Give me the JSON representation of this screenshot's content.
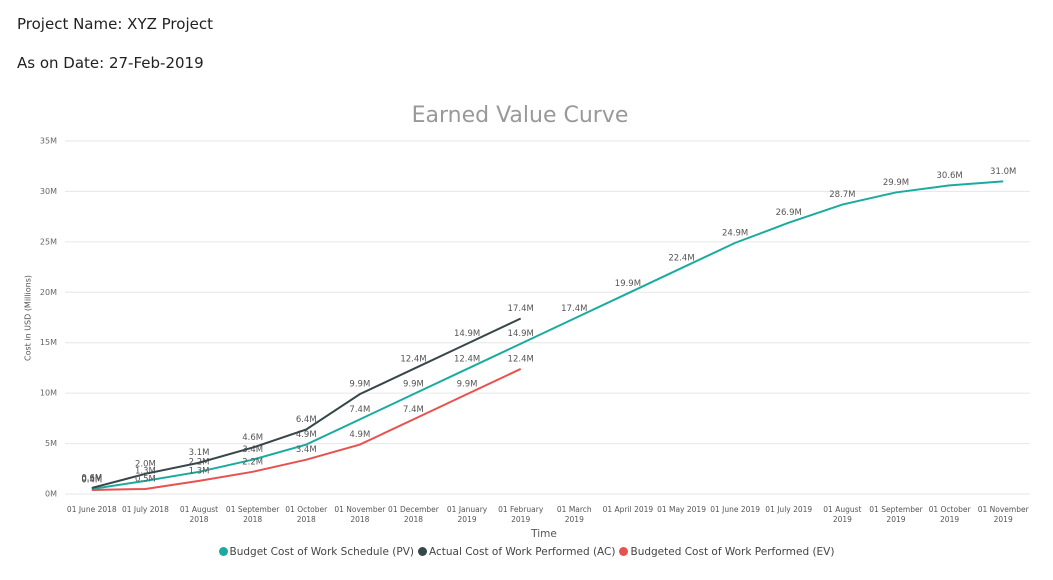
{
  "header": {
    "project": "Project Name: XYZ Project",
    "date": "As on Date: 27-Feb-2019"
  },
  "chart_data": {
    "type": "line",
    "title": "Earned Value Curve",
    "x_label": "Time",
    "y_label": "Cost in USD (Millions)",
    "categories": [
      "01 June 2018",
      "01 July 2018",
      "01 August 2018",
      "01 September 2018",
      "01 October 2018",
      "01 November 2018",
      "01 December 2018",
      "01 January 2019",
      "01 February 2019",
      "01 March 2019",
      "01 April 2019",
      "01 May 2019",
      "01 June 2019",
      "01 July 2019",
      "01 August 2019",
      "01 September 2019",
      "01 October 2019",
      "01 November 2019"
    ],
    "ylim": [
      0,
      35
    ],
    "yticks": [
      {
        "value": 0,
        "label": "0M"
      },
      {
        "value": 5,
        "label": "5M"
      },
      {
        "value": 10,
        "label": "10M"
      },
      {
        "value": 15,
        "label": "15M"
      },
      {
        "value": 20,
        "label": "20M"
      },
      {
        "value": 25,
        "label": "25M"
      },
      {
        "value": 30,
        "label": "30M"
      },
      {
        "value": 35,
        "label": "35M"
      }
    ],
    "grid": true,
    "series": [
      {
        "name": "Budget Cost of Work Schedule (PV)",
        "color": "#1aab9f",
        "values": [
          0.5,
          1.3,
          2.2,
          3.4,
          4.9,
          7.4,
          9.9,
          12.4,
          14.9,
          17.4,
          19.9,
          22.4,
          24.9,
          26.9,
          28.7,
          29.9,
          30.6,
          31.0
        ],
        "value_labels": [
          "0.5M",
          "1.3M",
          "2.2M",
          "3.4M",
          "4.9M",
          "7.4M",
          "9.9M",
          "12.4M",
          "14.9M",
          "17.4M",
          "19.9M",
          "22.4M",
          "24.9M",
          "26.9M",
          "28.7M",
          "29.9M",
          "30.6M",
          "31.0M"
        ]
      },
      {
        "name": "Actual Cost of Work Performed (AC)",
        "color": "#374649",
        "values": [
          0.6,
          2.0,
          3.1,
          4.6,
          6.4,
          9.9,
          12.4,
          14.9,
          17.4,
          null,
          null,
          null,
          null,
          null,
          null,
          null,
          null,
          null
        ],
        "value_labels": [
          "0.6M",
          "2.0M",
          "3.1M",
          "4.6M",
          "6.4M",
          "9.9M",
          "12.4M",
          "14.9M",
          "17.4M",
          null,
          null,
          null,
          null,
          null,
          null,
          null,
          null,
          null
        ]
      },
      {
        "name": "Budgeted Cost of Work Performed (EV)",
        "color": "#e9514f",
        "values": [
          0.4,
          0.5,
          1.3,
          2.2,
          3.4,
          4.9,
          7.4,
          9.9,
          12.4,
          null,
          null,
          null,
          null,
          null,
          null,
          null,
          null,
          null
        ],
        "value_labels": [
          "0.4M",
          "0.5M",
          "1.3M",
          "2.2M",
          "3.4M",
          "4.9M",
          "7.4M",
          "9.9M",
          "12.4M",
          null,
          null,
          null,
          null,
          null,
          null,
          null,
          null,
          null
        ]
      }
    ]
  }
}
